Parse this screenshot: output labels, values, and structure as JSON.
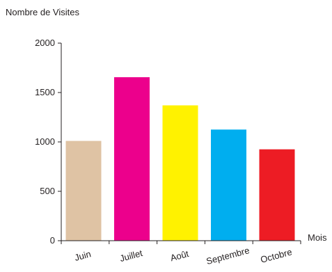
{
  "chart_data": {
    "type": "bar",
    "title": "",
    "ylabel": "Nombre de Visites",
    "xlabel": "Mois",
    "categories": [
      "Juin",
      "Juillet",
      "Août",
      "Septembre",
      "Octobre"
    ],
    "values": [
      1010,
      1655,
      1370,
      1125,
      925
    ],
    "colors": [
      "#dfc3a4",
      "#ec008c",
      "#fff200",
      "#00aeef",
      "#ed1c24"
    ],
    "yticks": [
      "0",
      "500",
      "1000",
      "1500",
      "2000"
    ],
    "ylim": [
      0,
      2000
    ],
    "grid": false,
    "legend": "none"
  }
}
